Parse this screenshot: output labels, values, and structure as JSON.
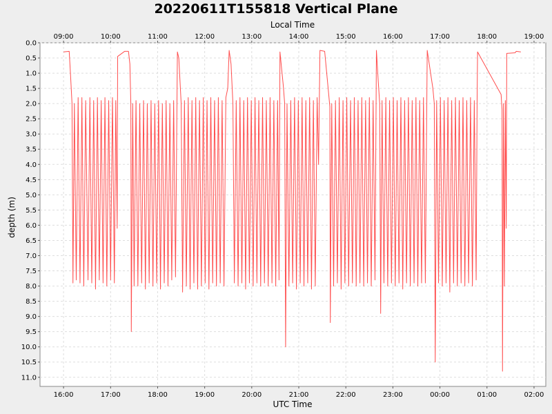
{
  "chart_data": {
    "type": "line",
    "title": "20220611T155818 Vertical Plane",
    "top_axis_label": "Local Time",
    "xlabel": "UTC Time",
    "ylabel": "depth (m)",
    "y_inverted": true,
    "ylim": [
      0,
      11.3
    ],
    "xlim_utc_hours": [
      15.5,
      26.25
    ],
    "grid": true,
    "line_color": "#ff4d4d",
    "bottom_ticks": [
      {
        "x": 16,
        "label": "16:00"
      },
      {
        "x": 17,
        "label": "17:00"
      },
      {
        "x": 18,
        "label": "18:00"
      },
      {
        "x": 19,
        "label": "19:00"
      },
      {
        "x": 20,
        "label": "20:00"
      },
      {
        "x": 21,
        "label": "21:00"
      },
      {
        "x": 22,
        "label": "22:00"
      },
      {
        "x": 23,
        "label": "23:00"
      },
      {
        "x": 24,
        "label": "00:00"
      },
      {
        "x": 25,
        "label": "01:00"
      },
      {
        "x": 26,
        "label": "02:00"
      }
    ],
    "top_ticks": [
      {
        "x": 16,
        "label": "09:00"
      },
      {
        "x": 17,
        "label": "10:00"
      },
      {
        "x": 18,
        "label": "11:00"
      },
      {
        "x": 19,
        "label": "12:00"
      },
      {
        "x": 20,
        "label": "13:00"
      },
      {
        "x": 21,
        "label": "14:00"
      },
      {
        "x": 22,
        "label": "15:00"
      },
      {
        "x": 23,
        "label": "16:00"
      },
      {
        "x": 24,
        "label": "17:00"
      },
      {
        "x": 25,
        "label": "18:00"
      },
      {
        "x": 26,
        "label": "19:00"
      }
    ],
    "y_ticks": [
      {
        "v": 0,
        "label": "0.0"
      },
      {
        "v": 0.5,
        "label": "0.5"
      },
      {
        "v": 1,
        "label": "1.0"
      },
      {
        "v": 1.5,
        "label": "1.5"
      },
      {
        "v": 2,
        "label": "2.0"
      },
      {
        "v": 2.5,
        "label": "2.5"
      },
      {
        "v": 3,
        "label": "3.0"
      },
      {
        "v": 3.5,
        "label": "3.5"
      },
      {
        "v": 4,
        "label": "4.0"
      },
      {
        "v": 4.5,
        "label": "4.5"
      },
      {
        "v": 5,
        "label": "5.0"
      },
      {
        "v": 5.5,
        "label": "5.5"
      },
      {
        "v": 6,
        "label": "6.0"
      },
      {
        "v": 6.5,
        "label": "6.5"
      },
      {
        "v": 7,
        "label": "7.0"
      },
      {
        "v": 7.5,
        "label": "7.5"
      },
      {
        "v": 8,
        "label": "8.0"
      },
      {
        "v": 8.5,
        "label": "8.5"
      },
      {
        "v": 9,
        "label": "9.0"
      },
      {
        "v": 9.5,
        "label": "9.5"
      },
      {
        "v": 10,
        "label": "10.0"
      },
      {
        "v": 10.5,
        "label": "10.5"
      },
      {
        "v": 11,
        "label": "11.0"
      }
    ],
    "series": [
      {
        "points": [
          [
            16.0,
            0.3
          ],
          [
            16.12,
            0.28
          ],
          [
            16.15,
            1.1
          ],
          [
            16.18,
            2.0
          ],
          [
            16.2,
            7.9
          ],
          [
            16.23,
            2.0
          ],
          [
            16.27,
            7.8
          ],
          [
            16.31,
            1.8
          ],
          [
            16.35,
            7.9
          ],
          [
            16.39,
            1.8
          ],
          [
            16.43,
            8.0
          ],
          [
            16.47,
            1.9
          ],
          [
            16.52,
            7.8
          ],
          [
            16.56,
            1.8
          ],
          [
            16.6,
            7.9
          ],
          [
            16.64,
            1.9
          ],
          [
            16.68,
            8.1
          ],
          [
            16.72,
            1.8
          ],
          [
            16.76,
            7.8
          ],
          [
            16.8,
            1.9
          ],
          [
            16.84,
            7.9
          ],
          [
            16.88,
            1.8
          ],
          [
            16.92,
            8.0
          ],
          [
            16.96,
            1.9
          ],
          [
            17.0,
            7.8
          ],
          [
            17.04,
            1.8
          ],
          [
            17.08,
            7.9
          ],
          [
            17.11,
            1.9
          ],
          [
            17.14,
            6.1
          ],
          [
            17.15,
            0.45
          ],
          [
            17.3,
            0.28
          ],
          [
            17.38,
            0.28
          ],
          [
            17.41,
            0.7
          ],
          [
            17.43,
            2.0
          ],
          [
            17.44,
            9.5
          ],
          [
            17.47,
            2.0
          ],
          [
            17.5,
            8.0
          ],
          [
            17.54,
            1.9
          ],
          [
            17.58,
            8.0
          ],
          [
            17.62,
            2.0
          ],
          [
            17.66,
            7.9
          ],
          [
            17.7,
            1.9
          ],
          [
            17.74,
            8.1
          ],
          [
            17.78,
            2.0
          ],
          [
            17.82,
            7.9
          ],
          [
            17.86,
            1.9
          ],
          [
            17.9,
            8.0
          ],
          [
            17.94,
            2.0
          ],
          [
            17.98,
            7.9
          ],
          [
            18.02,
            1.9
          ],
          [
            18.06,
            8.1
          ],
          [
            18.1,
            2.0
          ],
          [
            18.14,
            7.9
          ],
          [
            18.18,
            1.9
          ],
          [
            18.22,
            8.0
          ],
          [
            18.26,
            2.0
          ],
          [
            18.3,
            7.8
          ],
          [
            18.34,
            1.9
          ],
          [
            18.38,
            7.7
          ],
          [
            18.42,
            0.3
          ],
          [
            18.45,
            0.5
          ],
          [
            18.5,
            2.0
          ],
          [
            18.53,
            8.2
          ],
          [
            18.57,
            1.9
          ],
          [
            18.61,
            8.0
          ],
          [
            18.65,
            1.8
          ],
          [
            18.69,
            8.1
          ],
          [
            18.73,
            1.9
          ],
          [
            18.77,
            7.9
          ],
          [
            18.81,
            1.8
          ],
          [
            18.85,
            8.1
          ],
          [
            18.89,
            1.9
          ],
          [
            18.93,
            8.0
          ],
          [
            18.97,
            1.8
          ],
          [
            19.01,
            7.9
          ],
          [
            19.05,
            1.9
          ],
          [
            19.09,
            8.1
          ],
          [
            19.13,
            1.8
          ],
          [
            19.17,
            7.9
          ],
          [
            19.21,
            1.9
          ],
          [
            19.25,
            8.0
          ],
          [
            19.29,
            1.8
          ],
          [
            19.33,
            7.9
          ],
          [
            19.37,
            1.9
          ],
          [
            19.41,
            8.0
          ],
          [
            19.45,
            1.8
          ],
          [
            19.49,
            1.5
          ],
          [
            19.52,
            0.25
          ],
          [
            19.56,
            0.7
          ],
          [
            19.6,
            2.0
          ],
          [
            19.63,
            7.9
          ],
          [
            19.67,
            1.9
          ],
          [
            19.71,
            8.0
          ],
          [
            19.75,
            1.8
          ],
          [
            19.79,
            7.9
          ],
          [
            19.83,
            1.9
          ],
          [
            19.87,
            8.1
          ],
          [
            19.91,
            1.8
          ],
          [
            19.95,
            7.9
          ],
          [
            19.99,
            1.9
          ],
          [
            20.03,
            8.0
          ],
          [
            20.07,
            1.8
          ],
          [
            20.11,
            7.9
          ],
          [
            20.15,
            1.9
          ],
          [
            20.19,
            8.0
          ],
          [
            20.23,
            1.8
          ],
          [
            20.27,
            7.9
          ],
          [
            20.31,
            1.9
          ],
          [
            20.35,
            8.0
          ],
          [
            20.39,
            1.8
          ],
          [
            20.43,
            7.9
          ],
          [
            20.47,
            1.9
          ],
          [
            20.51,
            8.0
          ],
          [
            20.55,
            1.9
          ],
          [
            20.58,
            7.8
          ],
          [
            20.6,
            0.3
          ],
          [
            20.67,
            1.4
          ],
          [
            20.7,
            2.0
          ],
          [
            20.72,
            10.0
          ],
          [
            20.75,
            2.0
          ],
          [
            20.79,
            8.0
          ],
          [
            20.83,
            1.9
          ],
          [
            20.87,
            7.9
          ],
          [
            20.91,
            1.8
          ],
          [
            20.95,
            8.1
          ],
          [
            20.99,
            1.9
          ],
          [
            21.03,
            7.9
          ],
          [
            21.07,
            1.8
          ],
          [
            21.11,
            8.0
          ],
          [
            21.15,
            1.9
          ],
          [
            21.19,
            7.9
          ],
          [
            21.23,
            1.8
          ],
          [
            21.27,
            8.1
          ],
          [
            21.31,
            1.9
          ],
          [
            21.35,
            8.0
          ],
          [
            21.39,
            1.8
          ],
          [
            21.42,
            4.0
          ],
          [
            21.45,
            0.25
          ],
          [
            21.55,
            0.28
          ],
          [
            21.63,
            1.6
          ],
          [
            21.66,
            2.1
          ],
          [
            21.67,
            9.2
          ],
          [
            21.7,
            2.0
          ],
          [
            21.74,
            8.0
          ],
          [
            21.78,
            1.9
          ],
          [
            21.82,
            7.9
          ],
          [
            21.86,
            1.8
          ],
          [
            21.9,
            8.1
          ],
          [
            21.94,
            1.9
          ],
          [
            21.98,
            7.9
          ],
          [
            22.02,
            1.8
          ],
          [
            22.06,
            8.0
          ],
          [
            22.1,
            1.9
          ],
          [
            22.14,
            7.9
          ],
          [
            22.18,
            1.8
          ],
          [
            22.22,
            8.0
          ],
          [
            22.26,
            1.9
          ],
          [
            22.3,
            7.9
          ],
          [
            22.34,
            1.8
          ],
          [
            22.38,
            8.0
          ],
          [
            22.42,
            1.9
          ],
          [
            22.46,
            7.9
          ],
          [
            22.5,
            1.8
          ],
          [
            22.54,
            8.0
          ],
          [
            22.58,
            1.9
          ],
          [
            22.62,
            7.8
          ],
          [
            22.65,
            0.25
          ],
          [
            22.69,
            1.3
          ],
          [
            22.72,
            2.0
          ],
          [
            22.74,
            8.9
          ],
          [
            22.77,
            1.9
          ],
          [
            22.81,
            7.9
          ],
          [
            22.85,
            1.8
          ],
          [
            22.89,
            8.0
          ],
          [
            22.93,
            1.9
          ],
          [
            22.97,
            7.9
          ],
          [
            23.01,
            1.8
          ],
          [
            23.05,
            8.0
          ],
          [
            23.09,
            1.9
          ],
          [
            23.13,
            7.9
          ],
          [
            23.17,
            1.8
          ],
          [
            23.21,
            8.1
          ],
          [
            23.25,
            1.9
          ],
          [
            23.29,
            7.9
          ],
          [
            23.33,
            1.8
          ],
          [
            23.37,
            8.0
          ],
          [
            23.41,
            1.9
          ],
          [
            23.45,
            7.9
          ],
          [
            23.49,
            1.8
          ],
          [
            23.53,
            8.0
          ],
          [
            23.57,
            1.9
          ],
          [
            23.61,
            7.9
          ],
          [
            23.65,
            1.8
          ],
          [
            23.69,
            7.9
          ],
          [
            23.73,
            0.25
          ],
          [
            23.85,
            1.5
          ],
          [
            23.88,
            2.0
          ],
          [
            23.9,
            10.5
          ],
          [
            23.93,
            1.9
          ],
          [
            23.97,
            7.9
          ],
          [
            24.01,
            1.8
          ],
          [
            24.05,
            8.0
          ],
          [
            24.09,
            1.9
          ],
          [
            24.13,
            7.9
          ],
          [
            24.17,
            1.8
          ],
          [
            24.21,
            8.2
          ],
          [
            24.25,
            1.9
          ],
          [
            24.29,
            7.9
          ],
          [
            24.33,
            1.8
          ],
          [
            24.37,
            8.0
          ],
          [
            24.41,
            1.9
          ],
          [
            24.45,
            7.9
          ],
          [
            24.49,
            1.8
          ],
          [
            24.53,
            8.0
          ],
          [
            24.57,
            1.9
          ],
          [
            24.61,
            7.9
          ],
          [
            24.65,
            1.8
          ],
          [
            24.69,
            8.0
          ],
          [
            24.73,
            1.9
          ],
          [
            24.77,
            7.8
          ],
          [
            24.79,
            1.9
          ],
          [
            24.8,
            0.3
          ],
          [
            25.3,
            1.7
          ],
          [
            25.32,
            2.2
          ],
          [
            25.33,
            10.8
          ],
          [
            25.35,
            2.0
          ],
          [
            25.37,
            8.0
          ],
          [
            25.39,
            1.9
          ],
          [
            25.41,
            6.1
          ],
          [
            25.42,
            0.35
          ],
          [
            25.6,
            0.33
          ],
          [
            25.62,
            0.28
          ],
          [
            25.72,
            0.3
          ]
        ]
      }
    ]
  }
}
